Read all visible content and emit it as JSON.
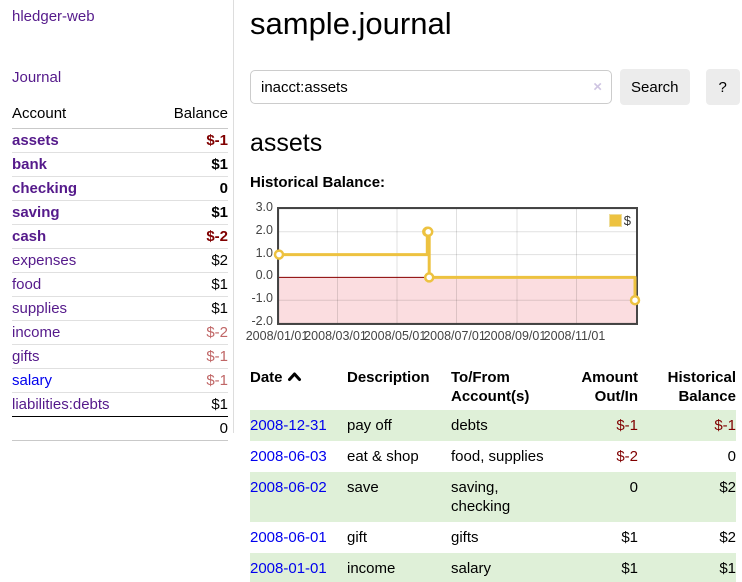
{
  "app": {
    "brand": "hledger-web",
    "nav": {
      "journal": "Journal"
    }
  },
  "sidebar": {
    "columns": {
      "account": "Account",
      "balance": "Balance"
    },
    "accounts": [
      {
        "name": "assets",
        "balance": "$-1",
        "depth": 1
      },
      {
        "name": "bank",
        "balance": "$1",
        "depth": 2
      },
      {
        "name": "checking",
        "balance": "0",
        "depth": 3
      },
      {
        "name": "saving",
        "balance": "$1",
        "depth": 3
      },
      {
        "name": "cash",
        "balance": "$-2",
        "depth": 2
      },
      {
        "name": "expenses",
        "balance": "$2",
        "depth": 1
      },
      {
        "name": "food",
        "balance": "$1",
        "depth": 2
      },
      {
        "name": "supplies",
        "balance": "$1",
        "depth": 2
      },
      {
        "name": "income",
        "balance": "$-2",
        "depth": 1
      },
      {
        "name": "gifts",
        "balance": "$-1",
        "depth": 2
      },
      {
        "name": "salary",
        "balance": "$-1",
        "depth": 2
      },
      {
        "name": "liabilities:debts",
        "balance": "$1",
        "depth": 1
      }
    ],
    "total": "0"
  },
  "header": {
    "title": "sample.journal"
  },
  "search": {
    "value": "inacct:assets",
    "clear_icon": "×",
    "search_button": "Search",
    "help_button": "?"
  },
  "account_page": {
    "heading": "assets",
    "chart_title": "Historical Balance:"
  },
  "chart_data": {
    "type": "line",
    "step": true,
    "title": "Historical Balance",
    "legend_position": "top-right",
    "series": [
      {
        "name": "$",
        "color": "#edc240",
        "points": [
          [
            "2008-01-01",
            1
          ],
          [
            "2008-06-01",
            2
          ],
          [
            "2008-06-02",
            2
          ],
          [
            "2008-06-03",
            0
          ],
          [
            "2008-12-31",
            -1
          ]
        ]
      }
    ],
    "xlim": [
      "2008-01-01",
      "2009-01-01"
    ],
    "ylim": [
      -2,
      3
    ],
    "x_ticks": [
      "2008/01/01",
      "2008/03/01",
      "2008/05/01",
      "2008/07/01",
      "2008/09/01",
      "2008/11/01"
    ],
    "y_ticks": [
      "3.0",
      "2.0",
      "1.0",
      "0.0",
      "-1.0",
      "-2.0"
    ],
    "grid": true,
    "negative_fill": "#fbdde0",
    "zero_line_color": "#8b0000"
  },
  "register": {
    "columns": {
      "date": "Date",
      "description": "Description",
      "accounts": "To/From Account(s)",
      "amount": "Amount Out/In",
      "balance": "Historical Balance"
    },
    "rows": [
      {
        "date": "2008-12-31",
        "description": "pay off",
        "accounts": "debts",
        "amount": "$-1",
        "balance": "$-1"
      },
      {
        "date": "2008-06-03",
        "description": "eat & shop",
        "accounts": "food, supplies",
        "amount": "$-2",
        "balance": "0"
      },
      {
        "date": "2008-06-02",
        "description": "save",
        "accounts": "saving, checking",
        "amount": "0",
        "balance": "$2"
      },
      {
        "date": "2008-06-01",
        "description": "gift",
        "accounts": "gifts",
        "amount": "$1",
        "balance": "$2"
      },
      {
        "date": "2008-01-01",
        "description": "income",
        "accounts": "salary",
        "amount": "$1",
        "balance": "$1"
      }
    ]
  }
}
